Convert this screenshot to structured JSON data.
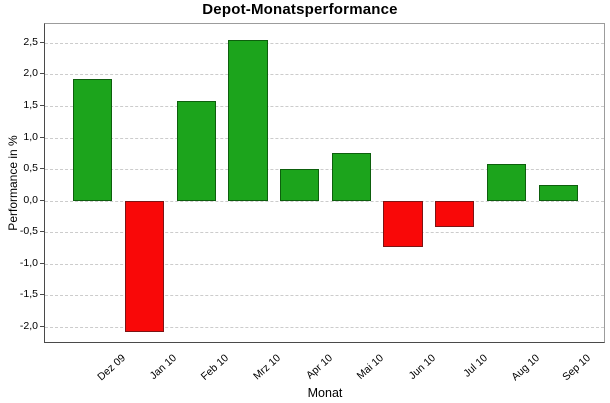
{
  "chart_data": {
    "type": "bar",
    "title": "Depot-Monatsperformance",
    "xlabel": "Monat",
    "ylabel": "Performance in %",
    "categories": [
      "Dez 09",
      "Jan 10",
      "Feb 10",
      "Mrz 10",
      "Apr 10",
      "Mai 10",
      "Jun 10",
      "Jul 10",
      "Aug 10",
      "Sep 10"
    ],
    "values": [
      1.93,
      -2.08,
      1.58,
      2.55,
      0.5,
      0.76,
      -0.73,
      -0.42,
      0.58,
      0.25
    ],
    "yticks": [
      2.5,
      2.0,
      1.5,
      1.0,
      0.5,
      0.0,
      -0.5,
      -1.0,
      -1.5,
      -2.0
    ],
    "ytick_labels": [
      "2,5",
      "2,0",
      "1,5",
      "1,0",
      "0,5",
      "0,0",
      "-0,5",
      "-1,0",
      "-1,5",
      "-2,0"
    ],
    "ylim": [
      -2.27,
      2.8
    ],
    "grid": "dashed",
    "legend": "none",
    "colors": {
      "positive": "#1ca41c",
      "positive_border": "#0d5f0d",
      "negative": "#f90808",
      "negative_border": "#7c1414",
      "grid": "#cccccc",
      "axis": "#4a4a4a",
      "plot_border": "#9c9c9c"
    }
  }
}
